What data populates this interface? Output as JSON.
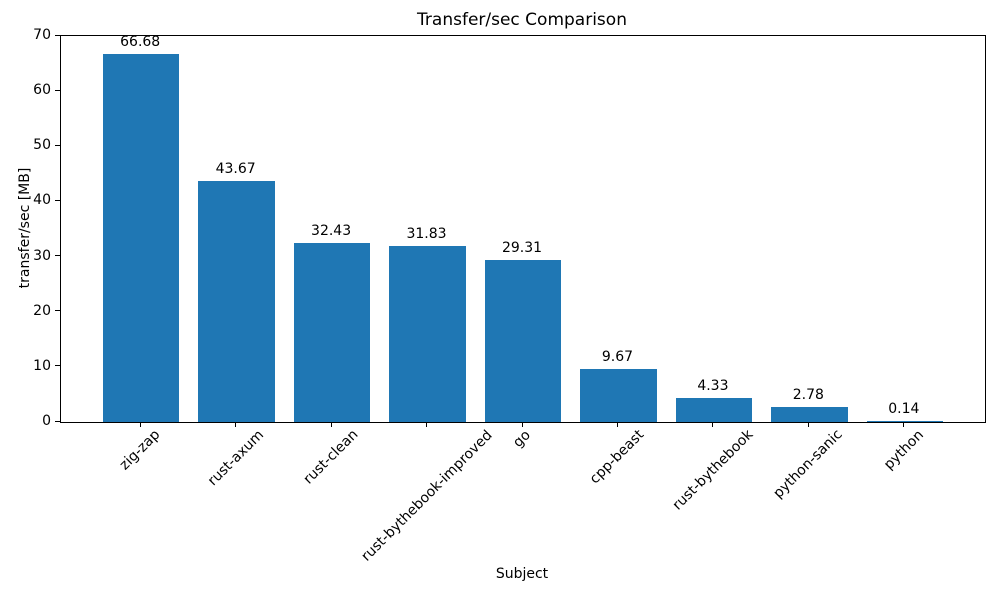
{
  "chart_data": {
    "type": "bar",
    "title": "Transfer/sec Comparison",
    "xlabel": "Subject",
    "ylabel": "transfer/sec [MB]",
    "categories": [
      "zig-zap",
      "rust-axum",
      "rust-clean",
      "rust-bythebook-improved",
      "go",
      "cpp-beast",
      "rust-bythebook",
      "python-sanic",
      "python"
    ],
    "values": [
      66.68,
      43.67,
      32.43,
      31.83,
      29.31,
      9.67,
      4.33,
      2.78,
      0.14
    ],
    "bar_labels": [
      "66.68",
      "43.67",
      "32.43",
      "31.83",
      "29.31",
      "9.67",
      "4.33",
      "2.78",
      "0.14"
    ],
    "ylim": [
      0,
      70
    ],
    "yticks": [
      0,
      10,
      20,
      30,
      40,
      50,
      60,
      70
    ],
    "bar_color": "#1f77b4",
    "x_tick_rotation": 45,
    "grid": false,
    "legend": null
  }
}
